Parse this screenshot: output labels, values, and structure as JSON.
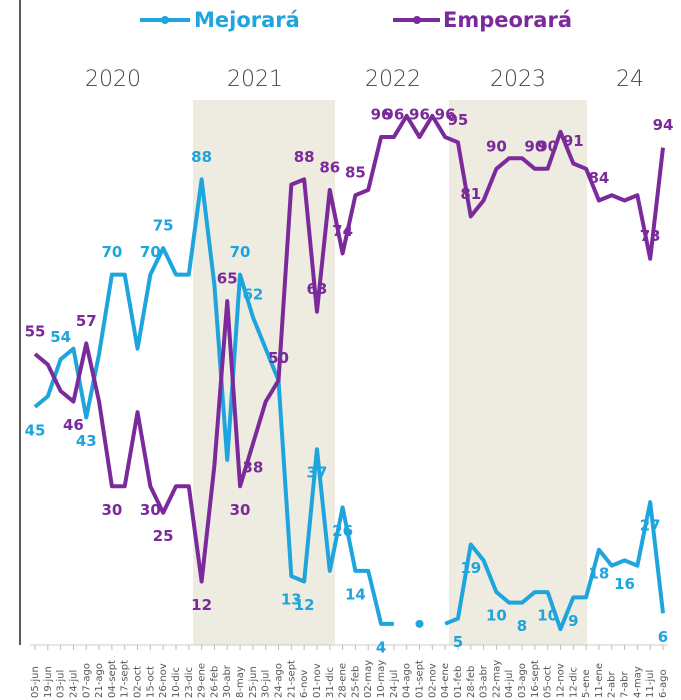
{
  "chart_data": {
    "type": "line",
    "periods": [
      "2020",
      "2021",
      "2022",
      "2023",
      "24"
    ],
    "categories": [
      "05-jun",
      "19-jun",
      "03-jul",
      "24-jul",
      "07-ago",
      "21-ago",
      "04-sept",
      "17-sept",
      "02-oct",
      "15-oct",
      "26-nov",
      "10-dic",
      "23-dic",
      "29-ene",
      "26-feb",
      "30-abr",
      "8-may",
      "25-jun",
      "30-jul",
      "24-ago",
      "21-sept",
      "6-nov",
      "01-nov",
      "31-dic",
      "28-ene",
      "25-feb",
      "02-may",
      "10-may",
      "24-jul",
      "04-ago",
      "01-sept",
      "02-nov",
      "04-ene",
      "01-feb",
      "28-feb",
      "03-abr",
      "22-may",
      "04-jul",
      "03-ago",
      "16-sept",
      "05-oct",
      "12-nov",
      "12-dic",
      "5-ene",
      "11-ene",
      "2-abr",
      "7-abr",
      "4-may",
      "11-jul",
      "6-ago"
    ],
    "series": [
      {
        "name": "Mejorará",
        "color": "#1ea5dd",
        "values": [
          45,
          47,
          54,
          56,
          43,
          55,
          70,
          70,
          56,
          70,
          75,
          70,
          70,
          88,
          68,
          35,
          70,
          62,
          56,
          50,
          13,
          12,
          37,
          14,
          26,
          14,
          14,
          4,
          4,
          null,
          4,
          null,
          4,
          5,
          19,
          16,
          10,
          8,
          8,
          10,
          10,
          3,
          9,
          9,
          18,
          15,
          16,
          15,
          27,
          6
        ]
      },
      {
        "name": "Empeorará",
        "color": "#7b2a9b",
        "values": [
          55,
          53,
          48,
          46,
          57,
          46,
          30,
          30,
          44,
          30,
          25,
          30,
          30,
          12,
          34,
          65,
          30,
          38,
          46,
          50,
          87,
          88,
          63,
          86,
          74,
          85,
          86,
          96,
          96,
          100,
          96,
          100,
          96,
          95,
          81,
          84,
          90,
          92,
          92,
          90,
          90,
          97,
          91,
          90,
          84,
          85,
          84,
          85,
          73,
          94
        ]
      }
    ],
    "ylim": [
      0,
      103
    ]
  }
}
